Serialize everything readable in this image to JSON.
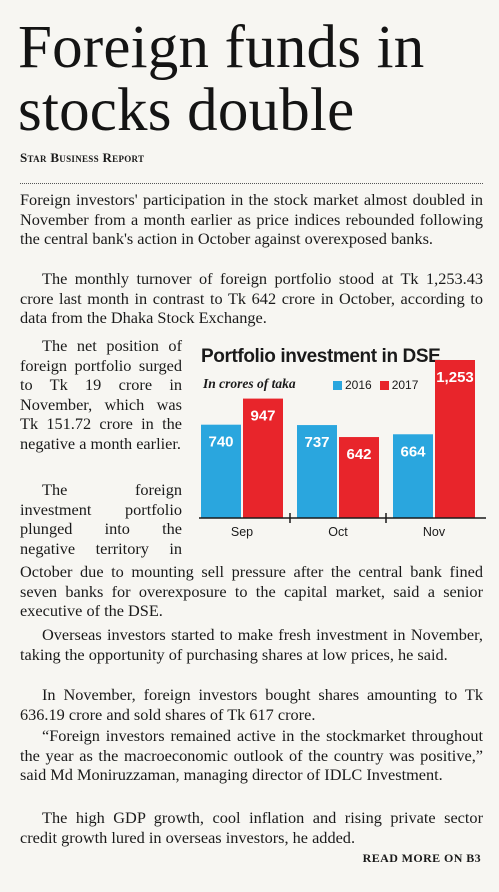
{
  "headline": "Foreign funds in stocks double",
  "byline": "Star Business Report",
  "paragraphs": {
    "p1": "Foreign investors' participation in the stock market almost doubled in November from a month earlier as price indices rebounded following the central bank's action in October against overexposed banks.",
    "p2": "The monthly turnover of foreign portfolio stood at Tk 1,253.43 crore last month in contrast to Tk 642 crore in October, according to data from the Dhaka Stock Exchange.",
    "p3": "The net position of foreign portfolio surged to Tk 19 crore in November, which was Tk 151.72 crore in the negative a month earlier.",
    "p4_side": "The foreign investment portfolio plunged into the negative territory in",
    "p4_rest": "October due to mounting sell pressure after the central bank fined seven banks for overexposure to the capital market, said a senior executive of the DSE.",
    "p5": "Overseas investors started to make fresh investment in November, taking the opportunity of purchasing shares at low prices, he said.",
    "p6": "In November, foreign investors bought shares amounting to Tk 636.19 crore and sold shares of Tk 617 crore.",
    "p7": "“Foreign investors remained active in the stockmarket throughout the year as the macroeconomic outlook of the country was positive,” said Md Moniruzzaman, managing director of IDLC Investment.",
    "p8": "The high GDP growth, cool inflation and rising private sector credit growth lured in overseas investors, he added."
  },
  "read_more": "READ MORE ON B3",
  "chart_data": {
    "type": "bar",
    "title": "Portfolio investment in DSE",
    "subtitle": "In crores of taka",
    "categories": [
      "Sep",
      "Oct",
      "Nov"
    ],
    "series": [
      {
        "name": "2016",
        "color": "#2aa6de",
        "values": [
          740,
          737,
          664
        ],
        "labels": [
          "740",
          "737",
          "664"
        ]
      },
      {
        "name": "2017",
        "color": "#e8252b",
        "values": [
          947,
          642,
          1253
        ],
        "labels": [
          "947",
          "642",
          "1,253"
        ]
      }
    ],
    "ylim": [
      0,
      1253
    ],
    "grid": false,
    "legend": "top"
  }
}
